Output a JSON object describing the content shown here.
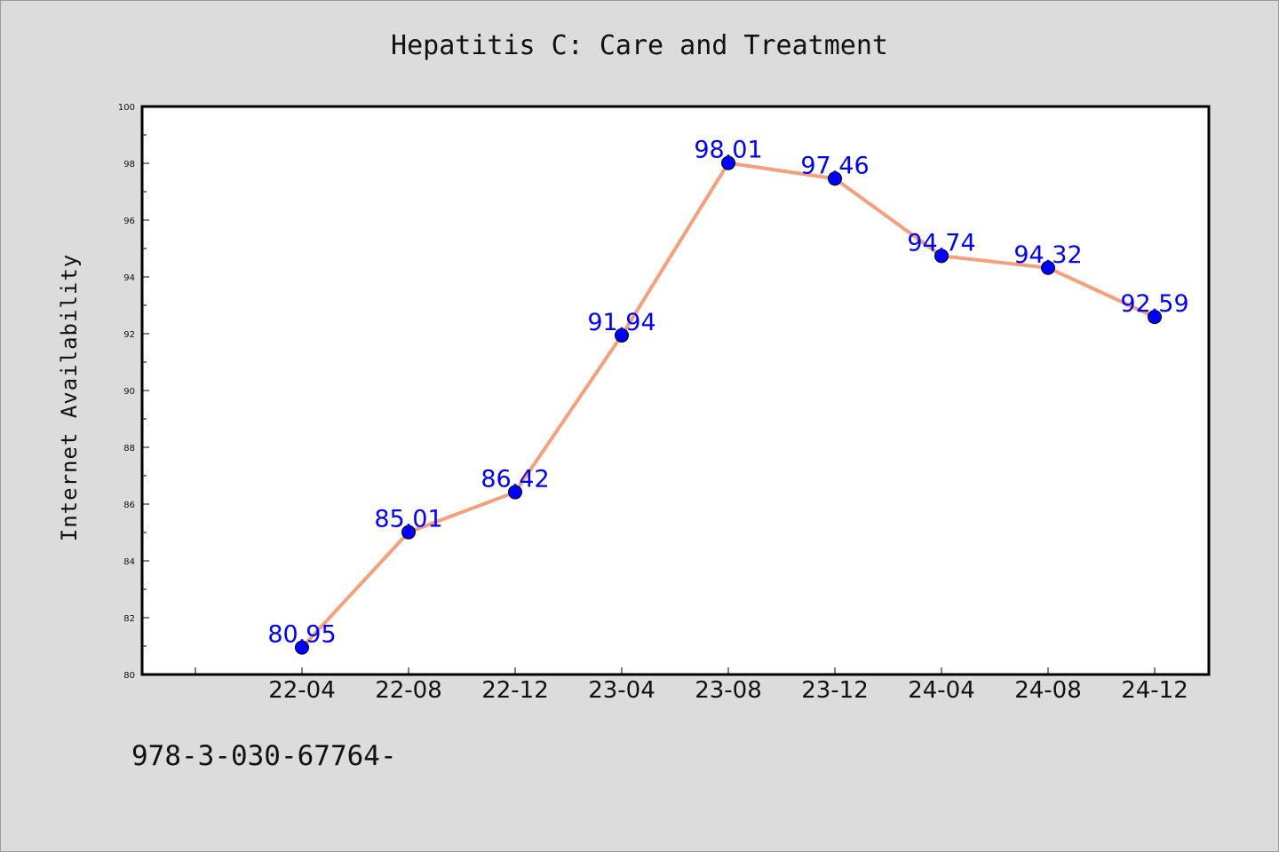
{
  "chart_data": {
    "type": "line",
    "title": "Hepatitis C: Care and Treatment",
    "xlabel": "",
    "ylabel": "Internet Availability",
    "categories": [
      "22-04",
      "22-08",
      "22-12",
      "23-04",
      "23-08",
      "23-12",
      "24-04",
      "24-08",
      "24-12"
    ],
    "series": [
      {
        "values": [
          80.95,
          85.01,
          86.42,
          91.94,
          98.01,
          97.46,
          94.74,
          94.32,
          92.59
        ]
      }
    ],
    "data_labels": [
      "80.95",
      "85.01",
      "86.42",
      "91.94",
      "98.01",
      "97.46",
      "94.74",
      "94.32",
      "92.59"
    ],
    "ylim": [
      80,
      100
    ],
    "yticks": [
      "80",
      "82",
      "84",
      "86",
      "88",
      "90",
      "92",
      "94",
      "96",
      "98",
      "100"
    ],
    "grid": false,
    "line_color": "#f4a07a",
    "marker_color": "#0000ff",
    "label_color": "#0000ff"
  },
  "footnote": "978-3-030-67764-"
}
